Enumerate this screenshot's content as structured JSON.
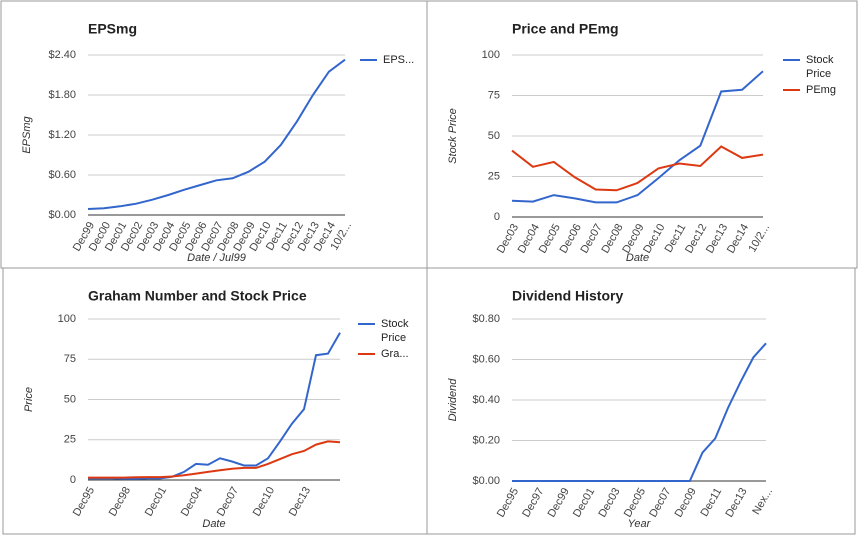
{
  "chart_data": [
    {
      "type": "line",
      "title": "EPSmg",
      "x_label": "Date / Jul99",
      "y_label": "EPSmg",
      "categories": [
        "Dec99",
        "Dec00",
        "Dec01",
        "Dec02",
        "Dec03",
        "Dec04",
        "Dec05",
        "Dec06",
        "Dec07",
        "Dec08",
        "Dec09",
        "Dec10",
        "Dec11",
        "Dec12",
        "Dec13",
        "Dec14",
        "10/2..."
      ],
      "series": [
        {
          "name": "EPS...",
          "color": "#3366cc",
          "values": [
            0.09,
            0.1,
            0.13,
            0.17,
            0.23,
            0.3,
            0.38,
            0.45,
            0.52,
            0.55,
            0.65,
            0.8,
            1.05,
            1.4,
            1.8,
            2.15,
            2.33
          ]
        }
      ],
      "ylim": [
        0,
        2.4
      ],
      "yticks": [
        {
          "value": 0,
          "label": "$0.00"
        },
        {
          "value": 0.6,
          "label": "$0.60"
        },
        {
          "value": 1.2,
          "label": "$1.20"
        },
        {
          "value": 1.8,
          "label": "$1.80"
        },
        {
          "value": 2.4,
          "label": "$2.40"
        }
      ],
      "grid": true,
      "legend": "right"
    },
    {
      "type": "line",
      "title": "Price and PEmg",
      "x_label": "Date",
      "y_label": "Stock Price",
      "categories": [
        "Dec03",
        "Dec04",
        "Dec05",
        "Dec06",
        "Dec07",
        "Dec08",
        "Dec09",
        "Dec10",
        "Dec11",
        "Dec12",
        "Dec13",
        "Dec14",
        "10/2..."
      ],
      "series": [
        {
          "name": "Stock Price",
          "color": "#3366cc",
          "values": [
            10,
            9.5,
            13.5,
            11.5,
            9,
            9,
            13.5,
            24,
            35,
            44,
            77.5,
            78.5,
            90
          ]
        },
        {
          "name": "PEmg",
          "color": "#dc3912",
          "values": [
            41,
            31,
            34,
            24.5,
            17,
            16.5,
            21,
            30,
            33,
            31.5,
            43.5,
            36.5,
            38.5
          ]
        }
      ],
      "ylim": [
        0,
        100
      ],
      "yticks": [
        0,
        25,
        50,
        75,
        100
      ],
      "grid": true,
      "legend": "right"
    },
    {
      "type": "line",
      "title": "Graham Number and Stock Price",
      "x_label": "Date",
      "y_label": "Price",
      "categories": [
        "Dec95",
        null,
        null,
        "Dec98",
        null,
        null,
        "Dec01",
        null,
        null,
        "Dec04",
        null,
        null,
        "Dec07",
        null,
        null,
        "Dec10",
        null,
        null,
        "Dec13",
        null,
        null,
        null
      ],
      "series": [
        {
          "name": "Stock Price",
          "color": "#3366cc",
          "values": [
            1,
            1,
            1,
            0.8,
            0.8,
            1,
            1,
            2,
            5,
            10,
            9.5,
            13.5,
            11.5,
            9,
            9,
            13.5,
            24,
            35,
            44,
            77.5,
            78.5,
            91.5
          ]
        },
        {
          "name": "Gra...",
          "color": "#dc3912",
          "values": [
            1.5,
            1.5,
            1.5,
            1.5,
            1.7,
            1.8,
            1.8,
            2.2,
            3,
            4,
            5,
            6,
            7,
            7.5,
            7.5,
            10,
            13,
            16,
            18,
            22,
            24,
            23.5
          ]
        }
      ],
      "ylim": [
        0,
        100
      ],
      "yticks": [
        0,
        25,
        50,
        75,
        100
      ],
      "grid": true,
      "legend": "right"
    },
    {
      "type": "line",
      "title": "Dividend History",
      "x_label": "Year",
      "y_label": "Dividend",
      "categories": [
        "Dec95",
        null,
        "Dec97",
        null,
        "Dec99",
        null,
        "Dec01",
        null,
        "Dec03",
        null,
        "Dec05",
        null,
        "Dec07",
        null,
        "Dec09",
        null,
        "Dec11",
        null,
        "Dec13",
        null,
        "Nex..."
      ],
      "series": [
        {
          "color": "#3366cc",
          "values": [
            0,
            0,
            0,
            0,
            0,
            0,
            0,
            0,
            0,
            0,
            0,
            0,
            0,
            0,
            0,
            0.14,
            0.21,
            0.36,
            0.49,
            0.61,
            0.68
          ]
        }
      ],
      "ylim": [
        0,
        0.8
      ],
      "yticks": [
        {
          "value": 0,
          "label": "$0.00"
        },
        {
          "value": 0.2,
          "label": "$0.20"
        },
        {
          "value": 0.4,
          "label": "$0.40"
        },
        {
          "value": 0.6,
          "label": "$0.60"
        },
        {
          "value": 0.8,
          "label": "$0.80"
        }
      ],
      "grid": true
    }
  ]
}
